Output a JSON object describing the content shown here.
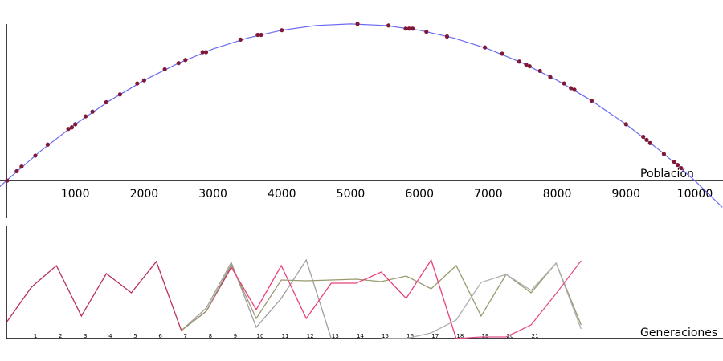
{
  "chart_data": [
    {
      "type": "scatter",
      "xlabel": "Población",
      "xlim": [
        -93.3,
        10408.7
      ],
      "ylim": [
        -0.25,
        1.03
      ],
      "xticks": [
        1000,
        2000,
        3000,
        4000,
        5000,
        6000,
        7000,
        8000,
        9000,
        10000
      ],
      "curve": {
        "color": "#6a6af0",
        "x": [
          -100,
          0,
          500,
          1000,
          1500,
          2000,
          2500,
          3000,
          3500,
          4000,
          4500,
          5000,
          5500,
          6000,
          6500,
          7000,
          7500,
          8000,
          8500,
          9000,
          9500,
          10000,
          10400
        ],
        "values": [
          -0.04,
          0,
          0.19,
          0.36,
          0.51,
          0.64,
          0.75,
          0.84,
          0.91,
          0.96,
          0.99,
          1,
          0.99,
          0.96,
          0.91,
          0.84,
          0.75,
          0.64,
          0.51,
          0.36,
          0.19,
          0,
          -0.17
        ]
      },
      "color": "#801838",
      "x": [
        10,
        150,
        220,
        420,
        600,
        900,
        950,
        1000,
        1150,
        1250,
        1450,
        1650,
        1900,
        2000,
        2300,
        2500,
        2600,
        2850,
        2900,
        3400,
        3650,
        3700,
        4000,
        5100,
        5550,
        5800,
        5850,
        5900,
        6100,
        6400,
        6950,
        7200,
        7450,
        7550,
        7600,
        7750,
        7900,
        8100,
        8200,
        8250,
        8500,
        9000,
        9250,
        9300,
        9350,
        9550,
        9700,
        9750,
        9800
      ],
      "values": [
        0,
        0.06,
        0.09,
        0.16,
        0.23,
        0.33,
        0.34,
        0.36,
        0.41,
        0.44,
        0.5,
        0.55,
        0.62,
        0.64,
        0.71,
        0.75,
        0.77,
        0.82,
        0.82,
        0.9,
        0.93,
        0.93,
        0.96,
        1,
        0.99,
        0.97,
        0.97,
        0.97,
        0.95,
        0.92,
        0.85,
        0.81,
        0.76,
        0.74,
        0.73,
        0.7,
        0.66,
        0.62,
        0.59,
        0.58,
        0.51,
        0.36,
        0.28,
        0.26,
        0.24,
        0.17,
        0.12,
        0.1,
        0.08
      ]
    },
    {
      "type": "line",
      "xlabel": "Generaciones",
      "xlim": [
        0,
        28.68
      ],
      "ylim": [
        0,
        1
      ],
      "xticks": [
        1,
        2,
        3,
        4,
        5,
        6,
        7,
        8,
        9,
        10,
        11,
        12,
        13,
        14,
        15,
        16,
        17,
        18,
        19,
        20,
        21
      ],
      "series": [
        {
          "color": "#b8305a",
          "x": [
            0,
            1,
            2,
            3,
            4,
            5,
            6,
            7,
            8,
            9
          ],
          "values": [
            0.2,
            0.64,
            0.91,
            0.28,
            0.81,
            0.57,
            0.96,
            0.1,
            0.34,
            0.89
          ]
        },
        {
          "color": "#a0a0a0",
          "x": [
            7,
            8,
            9,
            10,
            11,
            12,
            13
          ],
          "values": [
            0.1,
            0.38,
            0.95,
            0.14,
            0.5,
            0.98,
            0
          ]
        },
        {
          "color": "#9a9a70",
          "x": [
            7,
            8,
            9,
            10,
            11,
            12,
            13,
            14,
            15,
            16,
            17,
            18,
            19,
            20,
            21,
            22,
            23
          ],
          "values": [
            0.1,
            0.34,
            0.92,
            0.25,
            0.73,
            0.72,
            0.73,
            0.74,
            0.71,
            0.78,
            0.62,
            0.91,
            0.28,
            0.8,
            0.57,
            0.94,
            0.17
          ]
        },
        {
          "color": "#b0b0b0",
          "x": [
            15,
            16,
            17,
            18,
            19,
            20,
            21,
            22,
            23
          ],
          "values": [
            0,
            0,
            0.07,
            0.23,
            0.7,
            0.8,
            0.6,
            0.94,
            0.12
          ]
        },
        {
          "color": "#e8407a",
          "x": [
            9,
            10,
            11,
            12,
            13,
            14,
            15,
            16,
            17,
            18
          ],
          "values": [
            0.89,
            0.36,
            0.91,
            0.25,
            0.69,
            0.69,
            0.83,
            0.5,
            0.98,
            0
          ]
        },
        {
          "color": "#e0508a",
          "x": [
            18,
            19,
            20,
            21,
            22,
            23
          ],
          "values": [
            0,
            0.02,
            0.02,
            0.17,
            0.56,
            0.97
          ]
        }
      ]
    }
  ]
}
